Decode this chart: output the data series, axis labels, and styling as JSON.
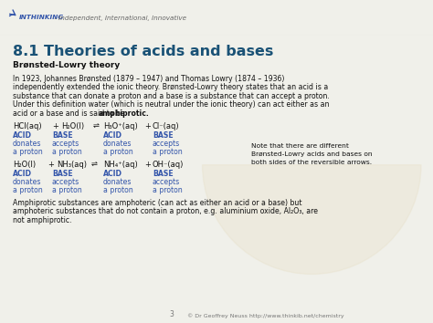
{
  "bg_color": "#f0f0ea",
  "header_bg": "#ffffff",
  "title": "8.1 Theories of acids and bases",
  "title_color": "#1a5276",
  "title_fontsize": 11.5,
  "logo_text": "INTHINKING",
  "logo_tagline": " - Independent, International, Innovative",
  "subtitle": "Brønsted-Lowry theory",
  "bold_word": "amphiprotic",
  "note_text": "Note that there are different\nBrønsted-Lowry acids and bases on\nboth sides of the reversible arrows.",
  "page_num": "3",
  "copyright": "© Dr Geoffrey Neuss http://www.thinkib.net/chemistry",
  "blue_color": "#3355aa",
  "text_color": "#111111",
  "header_line_color": "#cccccc",
  "body_fontsize": 5.6,
  "eq_fontsize": 6.0,
  "label_fontsize": 5.6
}
